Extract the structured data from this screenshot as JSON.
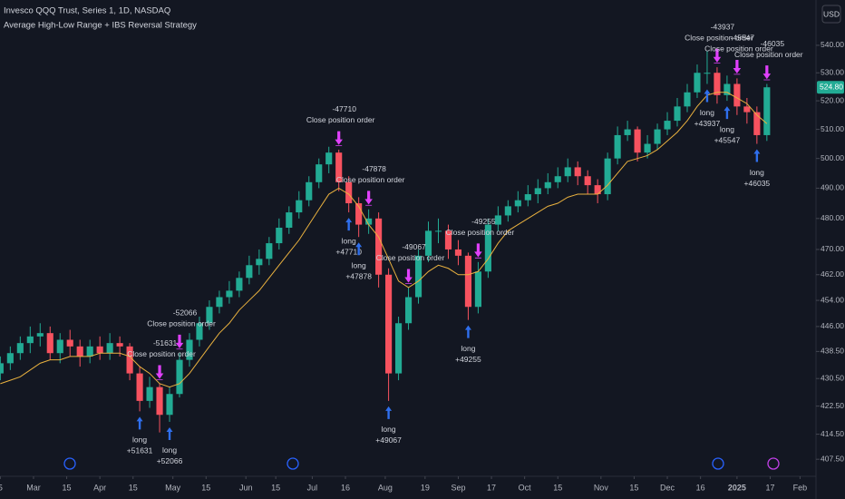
{
  "chart_data": {
    "type": "candlestick",
    "title": "Invesco QQQ Trust, Series 1, 1D, NASDAQ",
    "subtitle": "Average High-Low Range + IBS Reversal Strategy",
    "currency": "USD",
    "log_scale": true,
    "grid": false,
    "up_color": "#22ab94",
    "down_color": "#f7525f",
    "ma_color": "#e9b13f",
    "long_color": "#2f6fed",
    "close_color": "#e040fb",
    "xlim": [
      7.9,
      253.8
    ],
    "ylim": [
      402.8,
      556.9
    ],
    "xticks": [
      {
        "value": 8,
        "label": "5"
      },
      {
        "value": 18,
        "label": "Mar"
      },
      {
        "value": 28,
        "label": "15"
      },
      {
        "value": 38,
        "label": "Apr"
      },
      {
        "value": 48,
        "label": "15"
      },
      {
        "value": 60,
        "label": "May"
      },
      {
        "value": 70,
        "label": "15"
      },
      {
        "value": 82,
        "label": "Jun"
      },
      {
        "value": 91,
        "label": "15"
      },
      {
        "value": 102,
        "label": "Jul"
      },
      {
        "value": 112,
        "label": "16"
      },
      {
        "value": 124,
        "label": "Aug"
      },
      {
        "value": 136,
        "label": "19"
      },
      {
        "value": 146,
        "label": "Sep"
      },
      {
        "value": 156,
        "label": "17"
      },
      {
        "value": 166,
        "label": "Oct"
      },
      {
        "value": 176,
        "label": "15"
      },
      {
        "value": 189,
        "label": "Nov"
      },
      {
        "value": 199,
        "label": "15"
      },
      {
        "value": 209,
        "label": "Dec"
      },
      {
        "value": 219,
        "label": "16"
      },
      {
        "value": 230,
        "label": "2025"
      },
      {
        "value": 240,
        "label": "17"
      },
      {
        "value": 249,
        "label": "Feb"
      }
    ],
    "yticks": [
      {
        "value": 407.5,
        "label": "407.50"
      },
      {
        "value": 414.5,
        "label": "414.50"
      },
      {
        "value": 422.5,
        "label": "422.50"
      },
      {
        "value": 430.5,
        "label": "430.50"
      },
      {
        "value": 438.5,
        "label": "438.50"
      },
      {
        "value": 446,
        "label": "446.00"
      },
      {
        "value": 454,
        "label": "454.00"
      },
      {
        "value": 462,
        "label": "462.00"
      },
      {
        "value": 470,
        "label": "470.00"
      },
      {
        "value": 480,
        "label": "480.00"
      },
      {
        "value": 490,
        "label": "490.00"
      },
      {
        "value": 500,
        "label": "500.00"
      },
      {
        "value": 510,
        "label": "510.00"
      },
      {
        "value": 520,
        "label": "520.00"
      },
      {
        "value": 530,
        "label": "530.00"
      },
      {
        "value": 540,
        "label": "540.00"
      }
    ],
    "last_price": {
      "value": 524.8,
      "label": "524.80"
    },
    "x": [
      8,
      11,
      14,
      17,
      20,
      23,
      26,
      29,
      32,
      35,
      38,
      41,
      44,
      47,
      50,
      53,
      56,
      59,
      62,
      65,
      68,
      71,
      74,
      77,
      80,
      83,
      86,
      89,
      92,
      95,
      98,
      101,
      104,
      107,
      110,
      113,
      116,
      119,
      122,
      125,
      128,
      131,
      134,
      137,
      140,
      143,
      146,
      149,
      152,
      155,
      158,
      161,
      164,
      167,
      170,
      173,
      176,
      179,
      182,
      185,
      188,
      191,
      194,
      197,
      200,
      203,
      206,
      209,
      212,
      215,
      218,
      221,
      224,
      227,
      230,
      233,
      236,
      239
    ],
    "open": [
      432,
      435,
      438,
      441,
      443,
      444,
      438,
      442,
      440,
      437,
      440,
      438,
      441,
      440,
      432,
      424,
      428,
      420,
      426,
      436,
      442,
      447,
      452,
      455,
      457,
      461,
      465,
      467,
      472,
      477,
      482,
      486,
      492,
      498,
      502,
      492,
      485,
      478,
      480,
      462,
      432,
      447,
      455,
      468,
      476,
      476,
      470,
      468,
      452,
      463,
      478,
      481,
      484,
      486,
      488,
      490,
      492,
      494,
      497,
      494,
      491,
      488,
      500,
      508,
      510,
      502,
      505,
      510,
      513,
      518,
      523,
      530,
      530,
      522,
      526,
      518,
      516,
      508
    ],
    "high": [
      437,
      440,
      443,
      446,
      447,
      446,
      444,
      445,
      442,
      442,
      443,
      444,
      443,
      441,
      434,
      431,
      429,
      428,
      438,
      444,
      449,
      454,
      457,
      460,
      463,
      468,
      470,
      474,
      480,
      484,
      489,
      494,
      500,
      504,
      503,
      494,
      487,
      483,
      482,
      464,
      449,
      458,
      470,
      479,
      480,
      478,
      473,
      469,
      466,
      480,
      484,
      486,
      489,
      491,
      493,
      495,
      497,
      500,
      499,
      496,
      493,
      502,
      511,
      513,
      511,
      508,
      512,
      516,
      521,
      526,
      533,
      538,
      532,
      529,
      528,
      521,
      518,
      526
    ],
    "low": [
      430,
      433,
      436,
      438,
      440,
      436,
      435,
      437,
      434,
      435,
      436,
      436,
      437,
      430,
      421,
      422,
      415,
      418,
      425,
      434,
      440,
      445,
      450,
      453,
      455,
      459,
      462,
      465,
      470,
      475,
      480,
      484,
      490,
      495,
      489,
      482,
      474,
      475,
      458,
      424,
      430,
      445,
      453,
      466,
      472,
      467,
      465,
      448,
      450,
      461,
      476,
      479,
      482,
      484,
      485,
      488,
      490,
      492,
      491,
      488,
      485,
      486,
      498,
      506,
      499,
      500,
      503,
      508,
      511,
      516,
      521,
      526,
      519,
      520,
      515,
      512,
      505,
      506
    ],
    "close": [
      435,
      438,
      441,
      443,
      444,
      438,
      442,
      440,
      437,
      440,
      438,
      441,
      440,
      432,
      424,
      428,
      420,
      426,
      436,
      442,
      447,
      452,
      455,
      457,
      461,
      465,
      467,
      472,
      477,
      482,
      486,
      492,
      498,
      502,
      492,
      485,
      478,
      480,
      462,
      432,
      447,
      455,
      468,
      476,
      476,
      470,
      468,
      452,
      463,
      478,
      481,
      484,
      486,
      488,
      490,
      492,
      494,
      497,
      494,
      491,
      488,
      500,
      508,
      510,
      502,
      505,
      510,
      513,
      518,
      523,
      530,
      530,
      522,
      526,
      518,
      516,
      508,
      524.8
    ],
    "ma_values": [
      429,
      430,
      431,
      433,
      435,
      436,
      436,
      437,
      437,
      437,
      438,
      438,
      438,
      437,
      434,
      432,
      429,
      428,
      429,
      432,
      436,
      440,
      444,
      447,
      451,
      454,
      457,
      461,
      465,
      469,
      473,
      478,
      483,
      488,
      490,
      488,
      484,
      478,
      474,
      467,
      460,
      458,
      460,
      463,
      465,
      464,
      462,
      462,
      463,
      467,
      472,
      476,
      478,
      480,
      482,
      484,
      485,
      487,
      488,
      488,
      488,
      491,
      495,
      499,
      500,
      501,
      503,
      506,
      509,
      513,
      518,
      522,
      523,
      523,
      521,
      519,
      515,
      512
    ],
    "trades": [
      {
        "x": 50,
        "side": "long",
        "text": [
          "long",
          "+51631"
        ]
      },
      {
        "x": 56,
        "side": "close",
        "text": [
          "-51631",
          "Close position order"
        ]
      },
      {
        "x": 59,
        "side": "long",
        "text": [
          "long",
          "+52066"
        ]
      },
      {
        "x": 62,
        "side": "close",
        "text": [
          "-52066",
          "Close position order"
        ]
      },
      {
        "x": 113,
        "side": "long",
        "text": [
          "long",
          "+47710"
        ]
      },
      {
        "x": 110,
        "side": "close",
        "text": [
          "-47710",
          "Close position order"
        ]
      },
      {
        "x": 116,
        "side": "long",
        "text": [
          "long",
          "+47878"
        ]
      },
      {
        "x": 119,
        "side": "close",
        "text": [
          "-47878",
          "Close position order"
        ]
      },
      {
        "x": 125,
        "side": "long",
        "text": [
          "long",
          "+49067"
        ]
      },
      {
        "x": 131,
        "side": "close",
        "text": [
          "-49067",
          "Close position order"
        ]
      },
      {
        "x": 149,
        "side": "long",
        "text": [
          "long",
          "+49255"
        ]
      },
      {
        "x": 152,
        "side": "close",
        "text": [
          "-49255",
          "Close position order"
        ]
      },
      {
        "x": 221,
        "side": "long",
        "text": [
          "long",
          "+43937"
        ]
      },
      {
        "x": 224,
        "side": "close",
        "text": [
          "-43937",
          "Close position order"
        ]
      },
      {
        "x": 227,
        "side": "long",
        "text": [
          "long",
          "+45547"
        ]
      },
      {
        "x": 230,
        "side": "close",
        "text": [
          "-45547",
          "Close position order"
        ]
      },
      {
        "x": 236,
        "side": "long",
        "text": [
          "long",
          "+46035"
        ]
      },
      {
        "x": 239,
        "side": "close",
        "text": [
          "-46035",
          "Close position order"
        ]
      }
    ]
  }
}
